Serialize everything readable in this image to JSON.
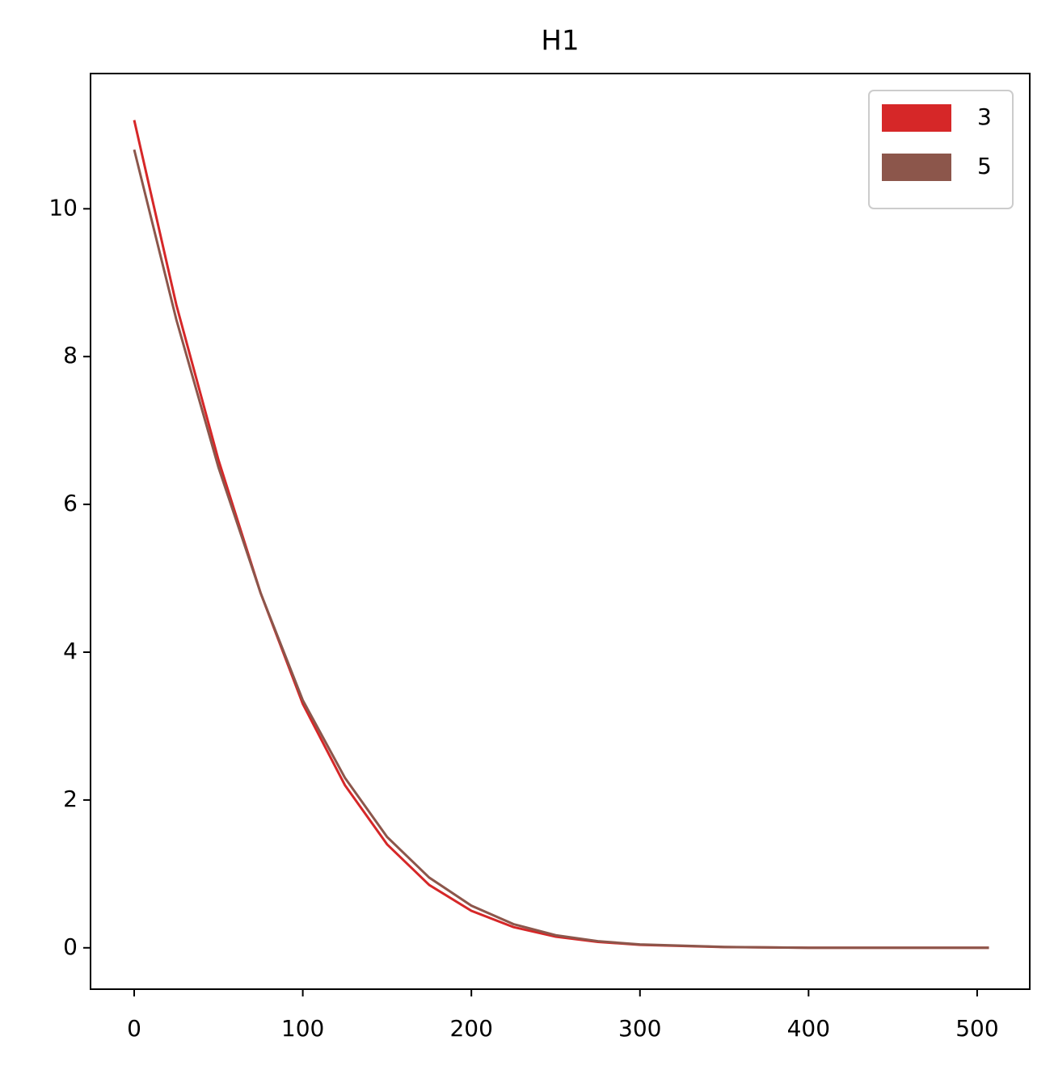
{
  "chart_data": {
    "type": "line",
    "title": "H1",
    "x": [
      0,
      25,
      50,
      75,
      100,
      125,
      150,
      175,
      200,
      225,
      250,
      275,
      300,
      350,
      400,
      450,
      507
    ],
    "series": [
      {
        "name": "3",
        "color": "#d62728",
        "values": [
          11.2,
          8.7,
          6.6,
          4.8,
          3.3,
          2.2,
          1.4,
          0.85,
          0.5,
          0.28,
          0.15,
          0.08,
          0.04,
          0.01,
          0,
          0,
          0
        ]
      },
      {
        "name": "5",
        "color": "#8c564b",
        "values": [
          10.8,
          8.5,
          6.5,
          4.8,
          3.35,
          2.3,
          1.5,
          0.95,
          0.57,
          0.32,
          0.17,
          0.09,
          0.045,
          0.012,
          0,
          0,
          0
        ]
      }
    ],
    "xlim": [
      -25.9,
      531.2
    ],
    "xticks": [
      0,
      100,
      200,
      300,
      400,
      500
    ],
    "ylim": [
      -0.56,
      11.83
    ],
    "yticks": [
      0,
      2,
      4,
      6,
      8,
      10
    ],
    "grid": false,
    "legend": "upper right"
  }
}
